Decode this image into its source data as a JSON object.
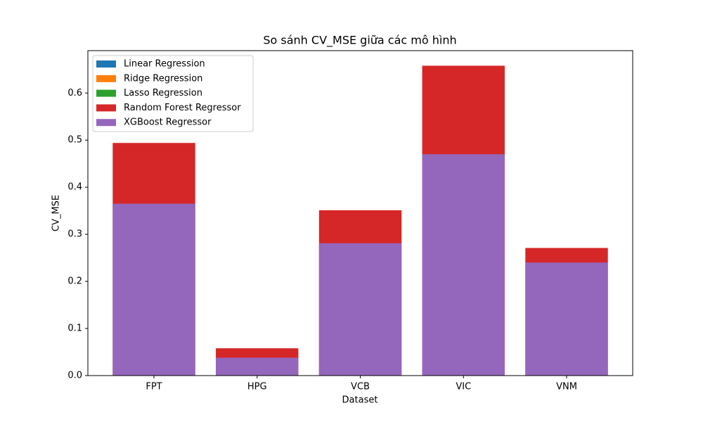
{
  "chart_data": {
    "type": "bar",
    "overlap": true,
    "title": "So sánh CV_MSE giữa các mô hình",
    "x_label": "Dataset",
    "y_label": "CV_MSE",
    "categories": [
      "FPT",
      "HPG",
      "VCB",
      "VIC",
      "VNM"
    ],
    "series": [
      {
        "name": "Linear Regression",
        "color": "#1f77b4",
        "values": [
          null,
          null,
          null,
          null,
          null
        ]
      },
      {
        "name": "Ridge Regression",
        "color": "#ff7f0e",
        "values": [
          null,
          null,
          null,
          null,
          null
        ]
      },
      {
        "name": "Lasso Regression",
        "color": "#2ca02c",
        "values": [
          null,
          null,
          null,
          null,
          null
        ]
      },
      {
        "name": "Random Forest Regressor",
        "color": "#d62728",
        "values": [
          0.494,
          0.058,
          0.351,
          0.658,
          0.271
        ]
      },
      {
        "name": "XGBoost Regressor",
        "color": "#9467bd",
        "values": [
          0.365,
          0.038,
          0.281,
          0.47,
          0.24
        ]
      }
    ],
    "ylim": [
      0,
      0.69
    ],
    "yticks": [
      {
        "value": 0,
        "label": "0.0"
      },
      0.1,
      0.2,
      0.3,
      0.4,
      0.5,
      0.6
    ],
    "legend": "upper-left"
  }
}
